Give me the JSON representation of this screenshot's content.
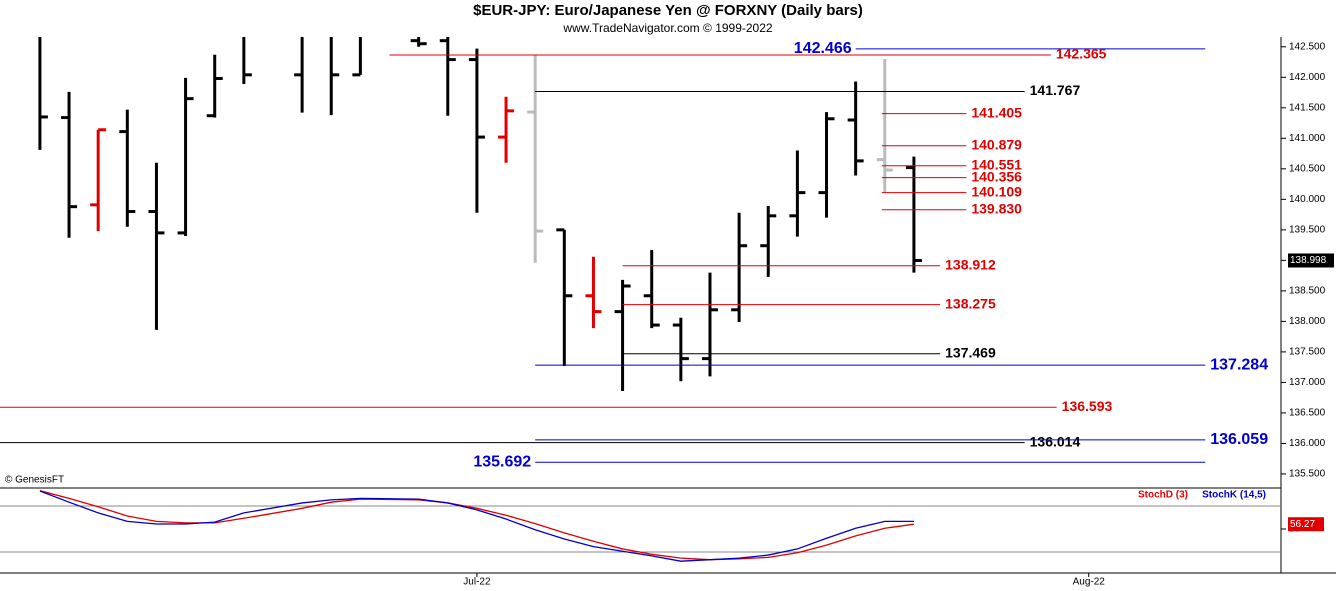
{
  "chart_data": [
    {
      "type": "ohlc",
      "title": "$EUR-JPY:  Euro/Japanese Yen @ FORXNY  (Daily bars)",
      "subtitle": "www.TradeNavigator.com © 1999-2022",
      "watermark": "© GenesisFT",
      "xlim": [
        -1.37,
        42.6
      ],
      "ylim": [
        135.27,
        142.66
      ],
      "xticks": [
        {
          "value": 15,
          "label": "Jul-22"
        },
        {
          "value": 36,
          "label": "Aug-22"
        }
      ],
      "yticks": [
        {
          "value": 142.5,
          "label": "142.500"
        },
        {
          "value": 142,
          "label": "142.000"
        },
        {
          "value": 141.5,
          "label": "141.500"
        },
        {
          "value": 141,
          "label": "141.000"
        },
        {
          "value": 140.5,
          "label": "140.500"
        },
        {
          "value": 140,
          "label": "140.000"
        },
        {
          "value": 139.5,
          "label": "139.500"
        },
        {
          "value": 139,
          "label": "139.000"
        },
        {
          "value": 138.5,
          "label": "138.500"
        },
        {
          "value": 138,
          "label": "138.000"
        },
        {
          "value": 137.5,
          "label": "137.500"
        },
        {
          "value": 137,
          "label": "137.000"
        },
        {
          "value": 136.5,
          "label": "136.500"
        },
        {
          "value": 136,
          "label": "136.000"
        },
        {
          "value": 135.5,
          "label": "135.500"
        }
      ],
      "x": [
        0,
        1,
        2,
        3,
        4,
        5,
        6,
        7,
        9,
        10,
        11,
        13,
        14,
        15,
        16,
        17,
        18,
        19,
        20,
        21,
        22,
        23,
        24,
        25,
        26,
        27,
        28,
        29,
        30
      ],
      "open": [
        142.7,
        141.34,
        139.91,
        141.11,
        139.8,
        139.45,
        141.37,
        142.7,
        142.04,
        142.7,
        142.04,
        142.6,
        142.6,
        142.29,
        141.02,
        141.43,
        139.5,
        138.42,
        138.16,
        138.42,
        137.94,
        137.39,
        138.19,
        139.24,
        139.73,
        140.11,
        141.3,
        140.65,
        140.52
      ],
      "high": [
        142.8,
        141.76,
        141.14,
        141.47,
        140.6,
        141.99,
        142.37,
        142.8,
        142.8,
        142.8,
        142.8,
        142.8,
        142.8,
        142.47,
        141.68,
        142.37,
        139.5,
        139.06,
        138.68,
        139.17,
        138.06,
        138.8,
        139.78,
        139.89,
        140.8,
        141.43,
        141.93,
        142.3,
        140.7
      ],
      "low": [
        140.81,
        139.37,
        139.48,
        139.55,
        137.86,
        139.4,
        141.34,
        141.89,
        141.42,
        141.38,
        142.04,
        142.5,
        141.37,
        139.78,
        140.6,
        138.96,
        137.27,
        137.89,
        136.86,
        137.89,
        137.02,
        137.1,
        137.99,
        138.73,
        139.39,
        139.7,
        140.39,
        140.11,
        138.8
      ],
      "close": [
        141.35,
        139.88,
        141.14,
        139.8,
        139.45,
        141.65,
        141.98,
        142.04,
        142.7,
        142.04,
        142.7,
        142.55,
        142.29,
        141.02,
        141.45,
        139.48,
        138.42,
        138.16,
        138.58,
        137.94,
        137.39,
        138.19,
        139.24,
        139.73,
        140.11,
        141.32,
        140.63,
        140.48,
        138.998
      ],
      "colors": [
        "#000",
        "#000",
        "#e00000",
        "#000",
        "#000",
        "#000",
        "#000",
        "#000",
        "#000",
        "#000",
        "#000",
        "#000",
        "#000",
        "#000",
        "#e00000",
        "#bbbbbb",
        "#000",
        "#e00000",
        "#000",
        "#000",
        "#000",
        "#000",
        "#000",
        "#000",
        "#000",
        "#000",
        "#000",
        "#bbbbbb",
        "#000"
      ],
      "levels": [
        {
          "value": 142.466,
          "label": "142.466",
          "color": "#0000cc",
          "from": 28,
          "to": 40,
          "side": "left"
        },
        {
          "value": 142.365,
          "label": "142.365",
          "color": "#e00000",
          "from": 12,
          "to": 34.7,
          "side": "right"
        },
        {
          "value": 141.767,
          "label": "141.767",
          "color": "#000000",
          "from": 17,
          "to": 33.8,
          "side": "right"
        },
        {
          "value": 141.405,
          "label": "141.405",
          "color": "#e00000",
          "from": 28.9,
          "to": 31.8,
          "side": "right"
        },
        {
          "value": 140.879,
          "label": "140.879",
          "color": "#e00000",
          "from": 28.9,
          "to": 31.8,
          "side": "right"
        },
        {
          "value": 140.551,
          "label": "140.551",
          "color": "#e00000",
          "from": 28.9,
          "to": 31.8,
          "side": "right"
        },
        {
          "value": 140.356,
          "label": "140.356",
          "color": "#e00000",
          "from": 28.9,
          "to": 31.8,
          "side": "right"
        },
        {
          "value": 140.109,
          "label": "140.109",
          "color": "#e00000",
          "from": 28.9,
          "to": 31.8,
          "side": "right"
        },
        {
          "value": 139.83,
          "label": "139.830",
          "color": "#e00000",
          "from": 28.9,
          "to": 31.8,
          "side": "right"
        },
        {
          "value": 138.912,
          "label": "138.912",
          "color": "#e00000",
          "from": 20,
          "to": 30.9,
          "side": "right"
        },
        {
          "value": 138.275,
          "label": "138.275",
          "color": "#e00000",
          "from": 20,
          "to": 30.9,
          "side": "right"
        },
        {
          "value": 137.469,
          "label": "137.469",
          "color": "#000000",
          "from": 20,
          "to": 30.9,
          "side": "right"
        },
        {
          "value": 137.284,
          "label": "137.284",
          "color": "#0000cc",
          "from": 17,
          "to": 40,
          "side": "right"
        },
        {
          "value": 136.593,
          "label": "136.593",
          "color": "#e00000",
          "from": -1.37,
          "to": 34.9,
          "side": "right"
        },
        {
          "value": 136.014,
          "label": "136.014",
          "color": "#000000",
          "from": -1.37,
          "to": 33.8,
          "side": "right"
        },
        {
          "value": 136.059,
          "label": "136.059",
          "color": "#0000cc",
          "from": 17,
          "to": 40,
          "side": "right"
        },
        {
          "value": 135.692,
          "label": "135.692",
          "color": "#0000cc",
          "from": 17,
          "to": 40,
          "side": "left"
        }
      ]
    },
    {
      "type": "line",
      "xlim": [
        -1.37,
        42.6
      ],
      "ylim": [
        -7.4,
        100.9
      ],
      "yticks": [
        50
      ],
      "levels": [
        20,
        80
      ],
      "x": [
        0,
        1,
        2,
        3,
        4,
        5,
        6,
        7,
        9,
        10,
        11,
        13,
        14,
        15,
        16,
        17,
        18,
        19,
        20,
        21,
        22,
        23,
        24,
        25,
        26,
        27,
        28,
        29,
        30
      ],
      "series": [
        {
          "name": "StochD (3)",
          "color": "#e00000",
          "values": [
            100,
            90,
            79,
            67,
            60,
            58,
            58,
            64,
            77,
            85,
            89,
            88,
            84,
            77,
            68,
            57,
            45,
            34,
            24,
            17,
            12,
            10,
            11,
            13,
            19,
            29,
            41,
            51,
            56.27
          ]
        },
        {
          "name": "StochK (14,5)",
          "color": "#0000cc",
          "values": [
            99.6,
            85,
            71,
            60,
            56.5,
            56.5,
            59,
            71,
            84,
            88,
            90,
            89,
            84,
            75,
            63,
            49,
            37,
            27,
            21,
            15,
            8,
            10,
            12,
            16,
            24,
            38,
            51,
            60,
            60
          ]
        }
      ]
    }
  ]
}
